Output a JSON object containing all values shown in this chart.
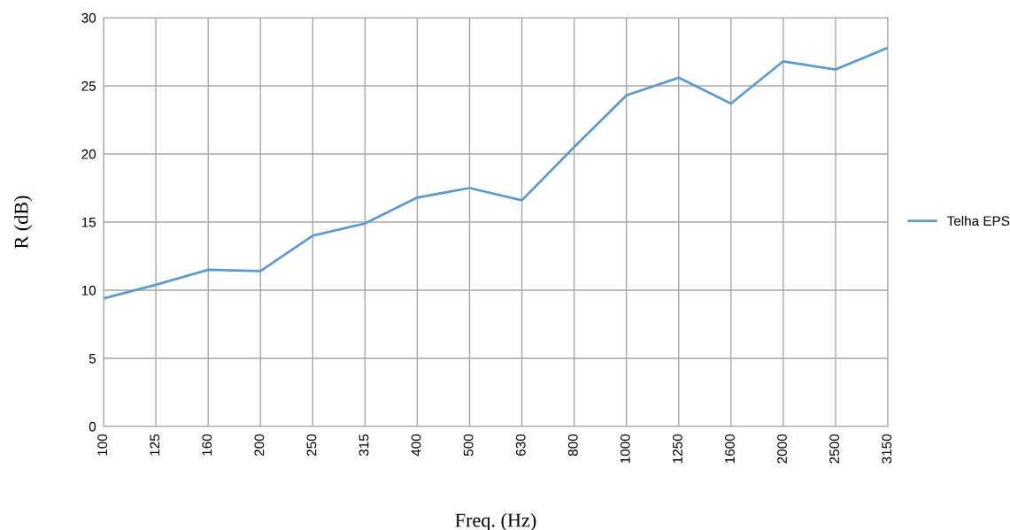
{
  "chart_data": {
    "type": "line",
    "xlabel": "Freq. (Hz)",
    "ylabel": "R (dB)",
    "categories": [
      "100",
      "125",
      "160",
      "200",
      "250",
      "315",
      "400",
      "500",
      "630",
      "800",
      "1000",
      "1250",
      "1600",
      "2000",
      "2500",
      "3150"
    ],
    "series": [
      {
        "name": "Telha EPS",
        "color": "#5b9bd5",
        "values": [
          9.4,
          10.4,
          11.5,
          11.4,
          14.0,
          14.9,
          16.8,
          17.5,
          16.6,
          20.5,
          24.3,
          25.6,
          23.7,
          26.8,
          26.2,
          27.8
        ]
      }
    ],
    "ylim": [
      0,
      30
    ],
    "yticks": [
      0,
      5,
      10,
      15,
      20,
      25,
      30
    ],
    "grid": true,
    "legend": "right",
    "marker": "none",
    "line_style": "solid"
  }
}
